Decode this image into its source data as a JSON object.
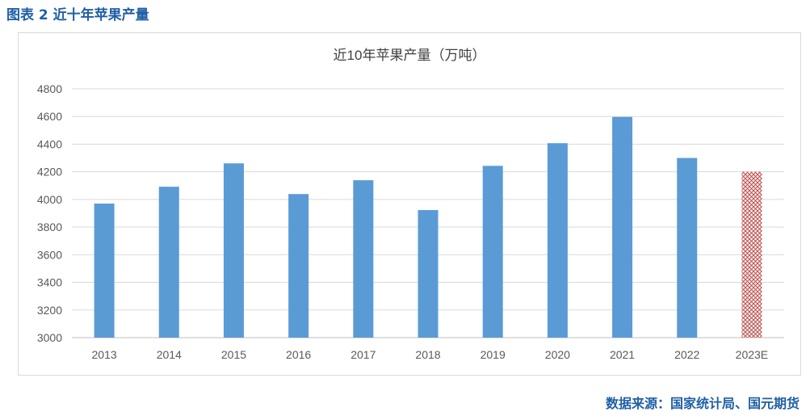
{
  "figure": {
    "caption": "图表 2 近十年苹果产量",
    "source": "数据来源：国家统计局、国元期货"
  },
  "chart_data": {
    "type": "bar",
    "title": "近10年苹果产量（万吨）",
    "xlabel": "",
    "ylabel": "",
    "categories": [
      "2013",
      "2014",
      "2015",
      "2016",
      "2017",
      "2018",
      "2019",
      "2020",
      "2021",
      "2022",
      "2023E"
    ],
    "values": [
      3970,
      4092,
      4261,
      4039,
      4139,
      3923,
      4243,
      4407,
      4597,
      4300,
      4200
    ],
    "estimate_flags": [
      false,
      false,
      false,
      false,
      false,
      false,
      false,
      false,
      false,
      false,
      true
    ],
    "ylim": [
      3000,
      4800
    ],
    "yticks": [
      3000,
      3200,
      3400,
      3600,
      3800,
      4000,
      4200,
      4400,
      4600,
      4800
    ],
    "grid": true,
    "legend": "none",
    "colors": {
      "bar": "#5b9bd5",
      "estimate_bar": "#c0504d",
      "grid": "#d9d9d9",
      "axis_text": "#595959",
      "accent": "#1f5fa6"
    }
  }
}
